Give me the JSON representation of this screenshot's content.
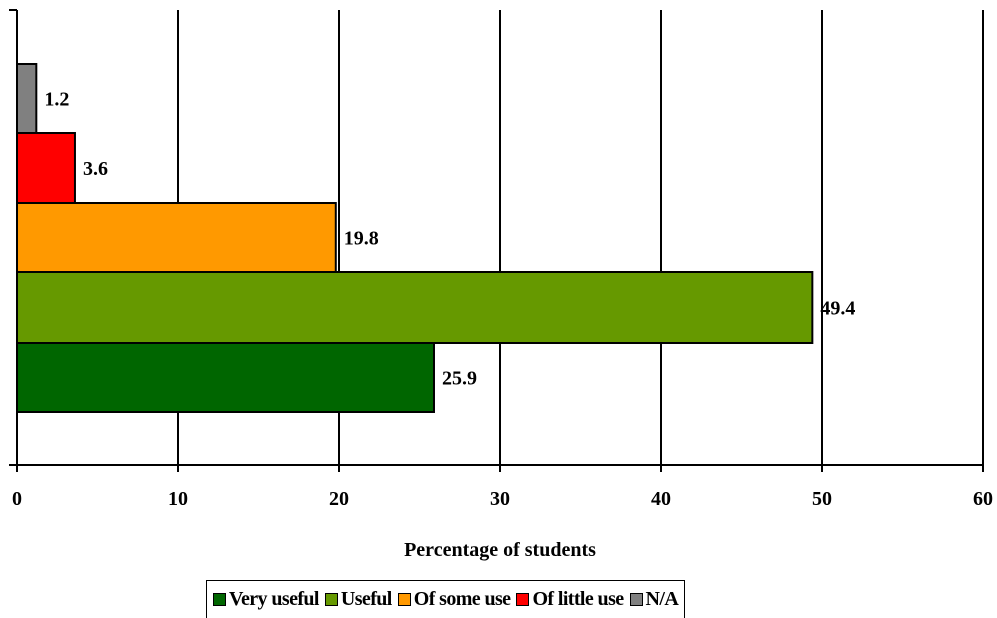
{
  "chart_data": {
    "type": "bar",
    "orientation": "horizontal",
    "grouping": "clustered",
    "title": "",
    "xlabel": "Percentage of students",
    "ylabel": "",
    "xlim": [
      0,
      60
    ],
    "xticks": [
      0,
      10,
      20,
      30,
      40,
      50,
      60
    ],
    "grid": true,
    "legend_position": "bottom",
    "series": [
      {
        "name": "Very useful",
        "value": 25.9,
        "label": "25.9",
        "color": "#006600"
      },
      {
        "name": "Useful",
        "value": 49.4,
        "label": "49.4",
        "color": "#669900"
      },
      {
        "name": "Of some use",
        "value": 19.8,
        "label": "19.8",
        "color": "#FF9900"
      },
      {
        "name": "Of little use",
        "value": 3.6,
        "label": "3.6",
        "color": "#FF0000"
      },
      {
        "name": "N/A",
        "value": 1.2,
        "label": "1.2",
        "color": "#808080"
      }
    ]
  }
}
